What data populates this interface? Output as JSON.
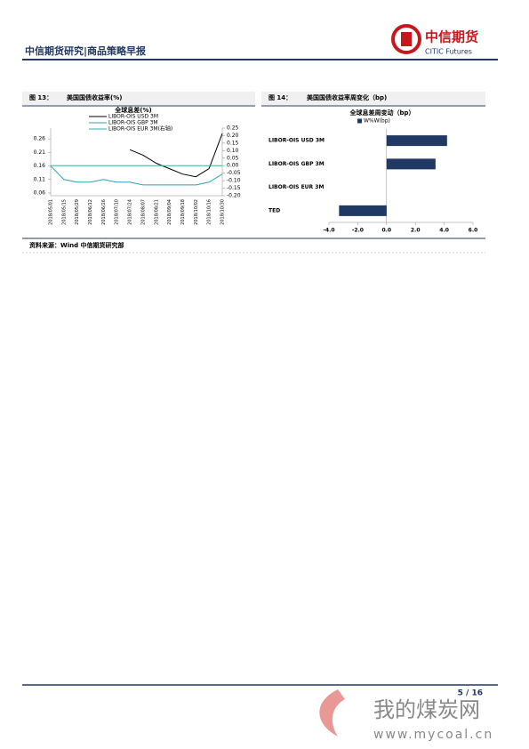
{
  "header": {
    "title": "中信期货研究|商品策略早报",
    "logo_cn": "中信期货",
    "logo_en": "CITIC Futures"
  },
  "figures": [
    {
      "number": "图 13：",
      "caption": "美国国债收益率(%)"
    },
    {
      "number": "图 14：",
      "caption": "美国国债收益率周变化（bp)"
    }
  ],
  "source": "资料来源：Wind 中信期货研究部",
  "footer": {
    "page": "5 / 16"
  },
  "watermark": {
    "name": "我的煤炭网",
    "url": "www.mycoal.cn"
  },
  "chart_data": [
    {
      "type": "line",
      "title": "全球息差(%)",
      "categories": [
        "2018/05/01",
        "2018/05/15",
        "2018/05/29",
        "2018/06/12",
        "2018/06/26",
        "2018/07/10",
        "2018/07/24",
        "2018/08/07",
        "2018/08/21",
        "2018/09/04",
        "2018/09/18",
        "2018/10/02",
        "2018/10/16",
        "2018/10/30"
      ],
      "series": [
        {
          "name": "LIBOR-OIS USD 3M",
          "color": "#000000",
          "values": [
            null,
            null,
            null,
            null,
            null,
            null,
            0.22,
            0.2,
            0.17,
            0.15,
            0.13,
            0.12,
            0.15,
            0.28
          ]
        },
        {
          "name": "LIBOR-OIS GBP 3M",
          "color": "#2b9fb8",
          "values": [
            0.16,
            0.11,
            0.1,
            0.1,
            0.11,
            0.1,
            0.1,
            0.09,
            0.09,
            0.09,
            0.09,
            0.09,
            0.1,
            0.13
          ]
        },
        {
          "name": "LIBOR-OIS EUR 3M(右轴)",
          "color": "#3aaea0",
          "axis": "y2",
          "values": [
            0,
            0,
            0,
            0,
            0,
            0,
            0,
            0,
            0,
            0,
            0,
            0,
            0,
            0
          ]
        }
      ],
      "ylim": [
        0.05,
        0.3
      ],
      "yticks": [
        0.06,
        0.11,
        0.16,
        0.21,
        0.26
      ],
      "y2lim": [
        -0.2,
        0.25
      ],
      "y2ticks": [
        {
          "value": 0.25,
          "label": "0.25"
        },
        {
          "value": 0.2,
          "label": "0.20"
        },
        {
          "value": 0.15,
          "label": "0.15"
        },
        {
          "value": 0.1,
          "label": "0.10"
        },
        {
          "value": 0.05,
          "label": "0.05"
        },
        {
          "value": 0,
          "label": "0.00"
        },
        {
          "value": -0.05,
          "label": "-0.05"
        },
        {
          "value": -0.1,
          "label": "-0.10"
        },
        {
          "value": -0.15,
          "label": "-0.15"
        },
        {
          "value": -0.2,
          "label": "-0.20"
        }
      ]
    },
    {
      "type": "bar",
      "orientation": "horizontal",
      "title": "全球息差周变动（bp）",
      "categories": [
        "LIBOR-OIS USD 3M",
        "LIBOR-OIS GBP 3M",
        "LIBOR-OIS EUR 3M",
        "TED"
      ],
      "series": [
        {
          "name": "W%W(bp)",
          "color": "#1f3864",
          "values": [
            4.2,
            3.4,
            0,
            -3.3
          ]
        }
      ],
      "xlim": [
        -4,
        6
      ],
      "xticks": [
        {
          "value": -4,
          "label": "-4.0"
        },
        {
          "value": -2,
          "label": "-2.0"
        },
        {
          "value": 0,
          "label": "0.0"
        },
        {
          "value": 2,
          "label": "2.0"
        },
        {
          "value": 4,
          "label": "4.0"
        },
        {
          "value": 6,
          "label": "6.0"
        }
      ]
    }
  ]
}
